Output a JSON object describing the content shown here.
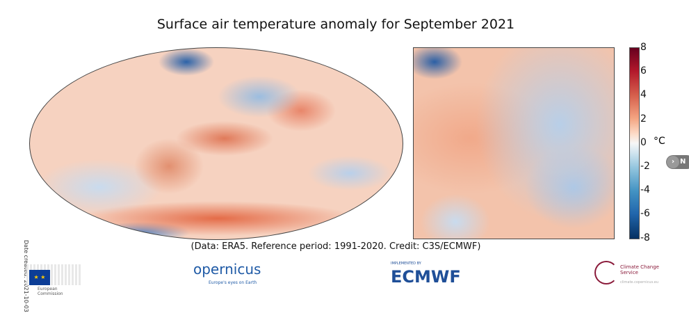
{
  "title": "Surface air temperature anomaly for September 2021",
  "caption": "(Data: ERA5.  Reference period: 1991-2020.  Credit: C3S/ECMWF)",
  "date_created": "Date created: 2021-10-03",
  "colorbar": {
    "unit": "°C",
    "ticks": [
      "8",
      "6",
      "4",
      "2",
      "0",
      "-2",
      "-4",
      "-6",
      "-8"
    ],
    "min": -8,
    "max": 8,
    "colors": {
      "max": "#67001f",
      "zero": "#f7f7f7",
      "min": "#053061"
    }
  },
  "next_button": {
    "label": "N"
  },
  "logos": {
    "eu": "European Commission",
    "copernicus": "opernicus",
    "copernicus_sub": "Europe's eyes on Earth",
    "ecmwf_sub": "IMPLEMENTED BY",
    "ecmwf": "ECMWF",
    "c3s": "Climate Change Service",
    "c3s_sub": "climate.copernicus.eu"
  }
}
